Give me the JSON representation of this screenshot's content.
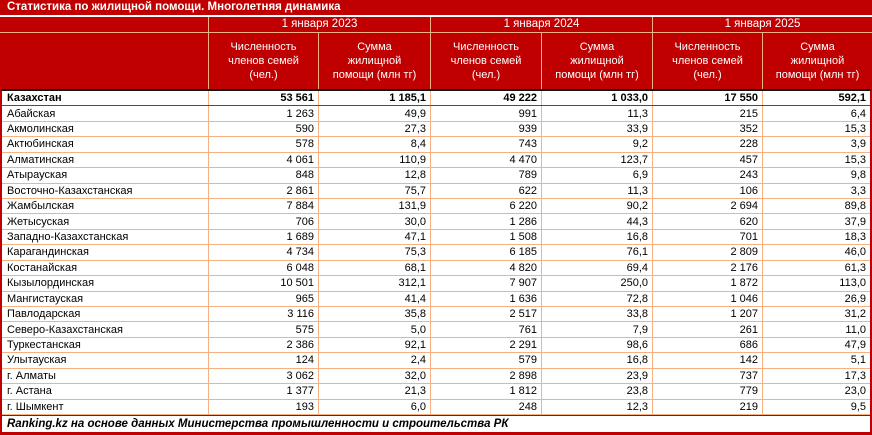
{
  "colors": {
    "header_bg": "#C00000",
    "header_text": "#FFFFFF",
    "grid_line": "#F4B183",
    "total_row_border": "#141414",
    "body_bg": "#FFFFFF",
    "body_text": "#000000"
  },
  "chart_data": {
    "type": "table",
    "title": "Статистика по жилищной помощи. Многолетняя динамика",
    "column_groups": [
      "1 января 2023",
      "1 января 2024",
      "1 января 2025"
    ],
    "sub_columns": [
      "Численность членов семей (чел.)",
      "Сумма жилищной помощи (млн тг)"
    ],
    "region_column_header": "",
    "rows": [
      {
        "region": "Казахстан",
        "total": true,
        "values": [
          "53 561",
          "1 185,1",
          "49 222",
          "1 033,0",
          "17 550",
          "592,1"
        ]
      },
      {
        "region": "Абайская",
        "values": [
          "1 263",
          "49,9",
          "991",
          "11,3",
          "215",
          "6,4"
        ]
      },
      {
        "region": "Акмолинская",
        "values": [
          "590",
          "27,3",
          "939",
          "33,9",
          "352",
          "15,3"
        ]
      },
      {
        "region": "Актюбинская",
        "values": [
          "578",
          "8,4",
          "743",
          "9,2",
          "228",
          "3,9"
        ]
      },
      {
        "region": "Алматинская",
        "values": [
          "4 061",
          "110,9",
          "4 470",
          "123,7",
          "457",
          "15,3"
        ]
      },
      {
        "region": "Атырауская",
        "values": [
          "848",
          "12,8",
          "789",
          "6,9",
          "243",
          "9,8"
        ]
      },
      {
        "region": "Восточно-Казахстанская",
        "values": [
          "2 861",
          "75,7",
          "622",
          "11,3",
          "106",
          "3,3"
        ]
      },
      {
        "region": "Жамбылская",
        "values": [
          "7 884",
          "131,9",
          "6 220",
          "90,2",
          "2 694",
          "89,8"
        ]
      },
      {
        "region": "Жетысуская",
        "values": [
          "706",
          "30,0",
          "1 286",
          "44,3",
          "620",
          "37,9"
        ]
      },
      {
        "region": "Западно-Казахстанская",
        "values": [
          "1 689",
          "47,1",
          "1 508",
          "16,8",
          "701",
          "18,3"
        ]
      },
      {
        "region": "Карагандинская",
        "values": [
          "4 734",
          "75,3",
          "6 185",
          "76,1",
          "2 809",
          "46,0"
        ]
      },
      {
        "region": "Костанайская",
        "values": [
          "6 048",
          "68,1",
          "4 820",
          "69,4",
          "2 176",
          "61,3"
        ]
      },
      {
        "region": "Кызылординская",
        "values": [
          "10 501",
          "312,1",
          "7 907",
          "250,0",
          "1 872",
          "113,0"
        ]
      },
      {
        "region": "Мангистауская",
        "values": [
          "965",
          "41,4",
          "1 636",
          "72,8",
          "1 046",
          "26,9"
        ]
      },
      {
        "region": "Павлодарская",
        "values": [
          "3 116",
          "35,8",
          "2 517",
          "33,8",
          "1 207",
          "31,2"
        ]
      },
      {
        "region": "Северо-Казахстанская",
        "values": [
          "575",
          "5,0",
          "761",
          "7,9",
          "261",
          "11,0"
        ]
      },
      {
        "region": "Туркестанская",
        "values": [
          "2 386",
          "92,1",
          "2 291",
          "98,6",
          "686",
          "47,9"
        ]
      },
      {
        "region": "Улытауская",
        "values": [
          "124",
          "2,4",
          "579",
          "16,8",
          "142",
          "5,1"
        ]
      },
      {
        "region": "г. Алматы",
        "values": [
          "3 062",
          "32,0",
          "2 898",
          "23,9",
          "737",
          "17,3"
        ]
      },
      {
        "region": "г. Астана",
        "values": [
          "1 377",
          "21,3",
          "1 812",
          "23,8",
          "779",
          "23,0"
        ]
      },
      {
        "region": "г. Шымкент",
        "values": [
          "193",
          "6,0",
          "248",
          "12,3",
          "219",
          "9,5"
        ]
      }
    ],
    "footer": "Ranking.kz на основе данных Министерства промышленности и строительства РК"
  }
}
